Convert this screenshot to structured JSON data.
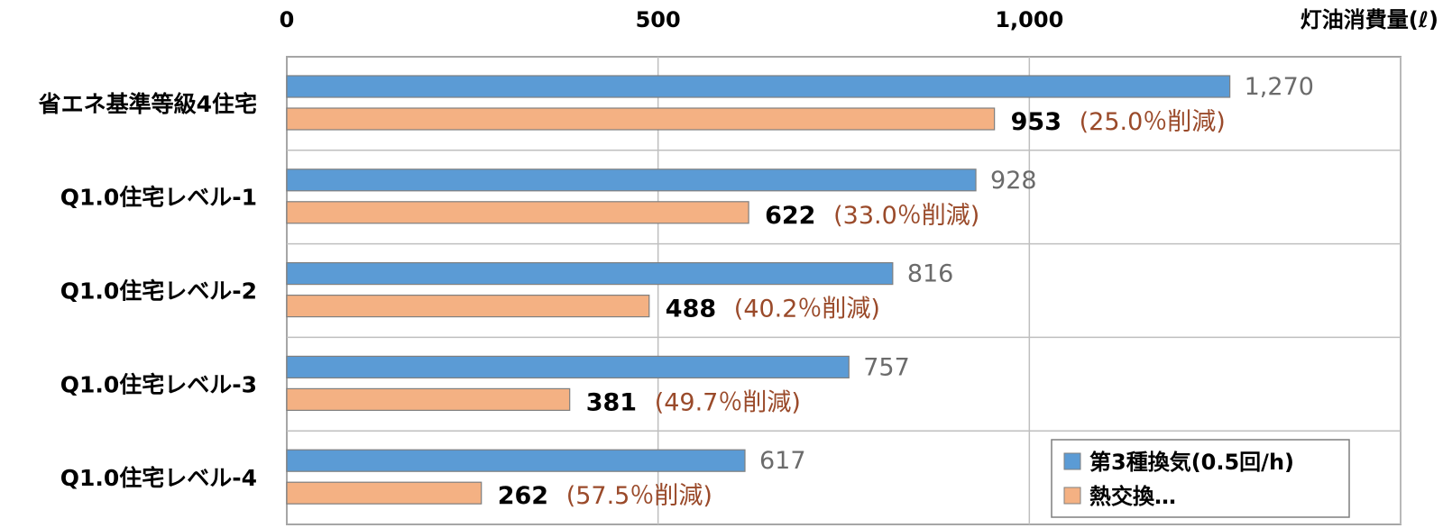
{
  "chart_data": {
    "type": "bar",
    "orientation": "horizontal",
    "categories": [
      "省エネ基準等級4住宅",
      "Q1.0住宅レベル-1",
      "Q1.0住宅レベル-2",
      "Q1.0住宅レベル-3",
      "Q1.0住宅レベル-4"
    ],
    "series": [
      {
        "name": "第3種換気(0.5回/h)",
        "values": [
          1270,
          928,
          816,
          757,
          617
        ],
        "color": "#5b9bd5"
      },
      {
        "name": "熱交換…",
        "values": [
          953,
          622,
          488,
          381,
          262
        ],
        "color": "#f4b183"
      }
    ],
    "value_labels": {
      "series1": [
        "1,270",
        "928",
        "816",
        "757",
        "617"
      ],
      "series2": [
        "953",
        "622",
        "488",
        "381",
        "262"
      ]
    },
    "annotations": [
      "(25.0％削減)",
      "(33.0％削減)",
      "(40.2％削減)",
      "(49.7％削減)",
      "(57.5％削減)"
    ],
    "annotation_color": "#9a4a2a",
    "xlim": [
      0,
      1500
    ],
    "xticks": [
      0,
      500,
      1000
    ],
    "xtick_labels": [
      "0",
      "500",
      "1,000"
    ],
    "axis_position": "top",
    "unit_label": "灯油消費量(ℓ)",
    "grid": true,
    "legend_position": "bottom-right"
  }
}
